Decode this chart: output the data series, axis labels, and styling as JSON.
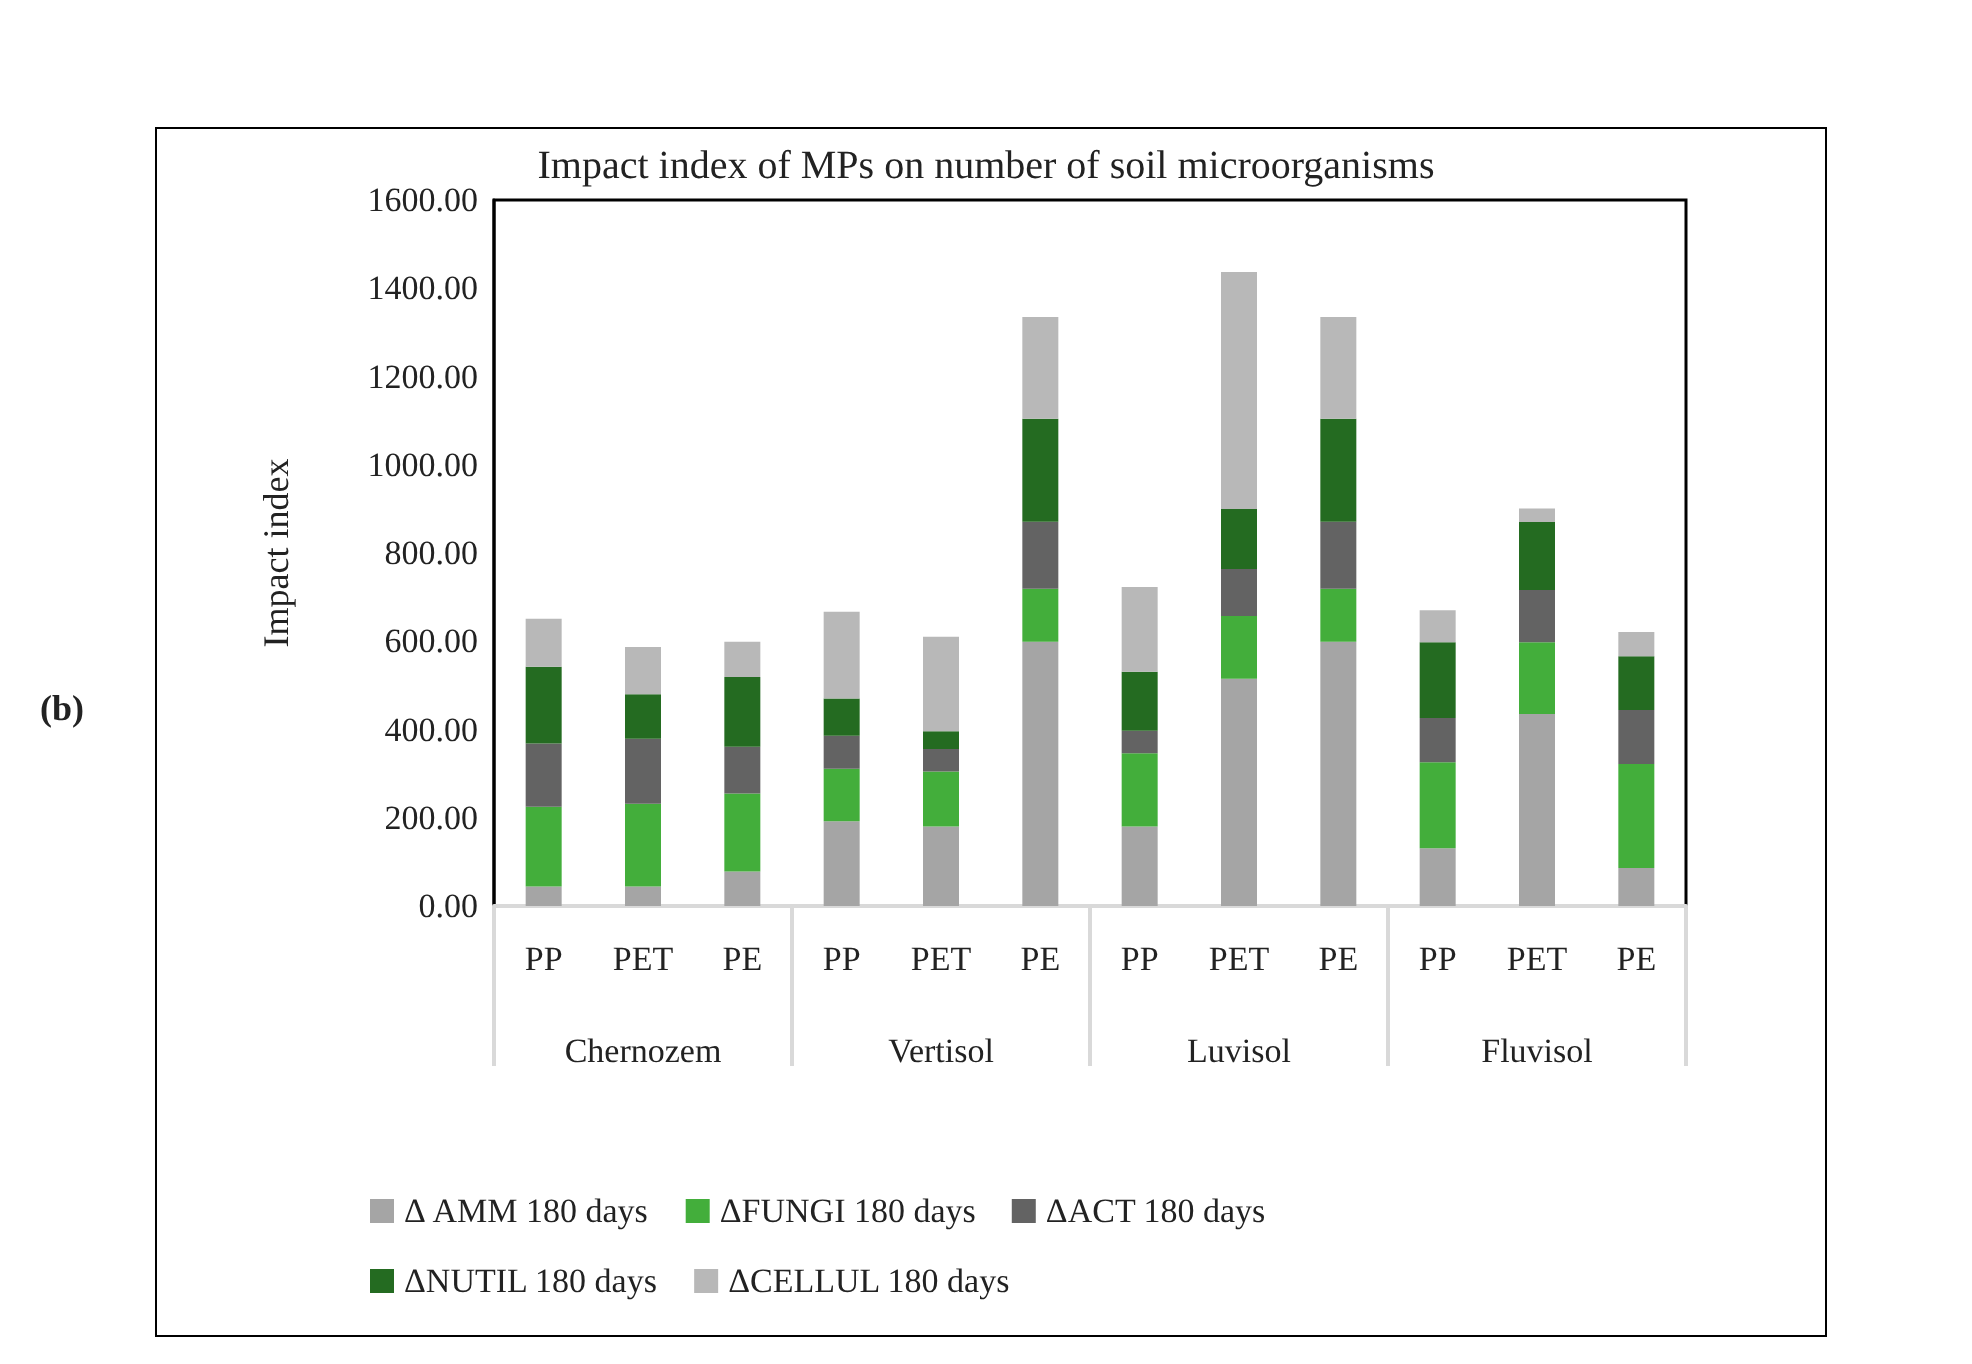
{
  "chart_data": {
    "type": "bar",
    "title": "Impact index of MPs on number of soil microorganisms",
    "ylabel": "Impact index",
    "categories": [
      "PP",
      "PET",
      "PE",
      "PP",
      "PET",
      "PE",
      "PP",
      "PET",
      "PE",
      "PP",
      "PET",
      "PE"
    ],
    "annotations": [
      "(b)",
      "Chernozem",
      "Vertisol",
      "Luvisol",
      "Fluvisol"
    ],
    "stacked": true,
    "series": [
      {
        "name": "Δ AMM 180 days",
        "color": "#a5a5a5",
        "values": [
          44,
          44,
          78,
          192,
          180,
          599,
          180,
          515,
          599,
          131,
          435,
          86
        ]
      },
      {
        "name": "ΔFUNGI 180 days",
        "color": "#43ae3b",
        "values": [
          181,
          188,
          177,
          119,
          125,
          120,
          166,
          142,
          120,
          195,
          163,
          236
        ]
      },
      {
        "name": "ΔACT 180 days",
        "color": "#636363",
        "values": [
          143,
          147,
          106,
          75,
          51,
          152,
          51,
          107,
          152,
          100,
          118,
          122
        ]
      },
      {
        "name": "ΔNUTIL 180 days",
        "color": "#246b21",
        "values": [
          174,
          101,
          158,
          84,
          40,
          233,
          134,
          136,
          233,
          172,
          154,
          122
        ]
      },
      {
        "name": "ΔCELLUL 180 days",
        "color": "#b8b8b8",
        "values": [
          109,
          107,
          80,
          197,
          214,
          231,
          192,
          537,
          231,
          72,
          31,
          55
        ]
      }
    ],
    "ylim": [
      0,
      1600
    ],
    "yticks": [
      {
        "value": 0,
        "label": "0.00"
      },
      {
        "value": 200,
        "label": "200.00"
      },
      {
        "value": 400,
        "label": "400.00"
      },
      {
        "value": 600,
        "label": "600.00"
      },
      {
        "value": 800,
        "label": "800.00"
      },
      {
        "value": 1000,
        "label": "1000.00"
      },
      {
        "value": 1200,
        "label": "1200.00"
      },
      {
        "value": 1400,
        "label": "1400.00"
      },
      {
        "value": 1600,
        "label": "1600.00"
      }
    ],
    "grid": false,
    "legend": "bottom"
  }
}
